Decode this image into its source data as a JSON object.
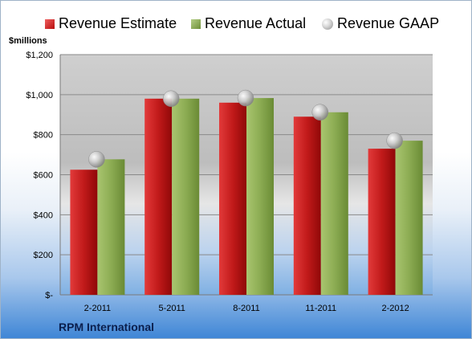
{
  "chart_data": {
    "type": "bar",
    "title": "",
    "xlabel": "",
    "ylabel": "",
    "unit_label": "$millions",
    "company": "RPM International",
    "categories": [
      "2-2011",
      "5-2011",
      "8-2011",
      "11-2011",
      "2-2012"
    ],
    "series": [
      {
        "name": "Revenue Estimate",
        "type": "bar",
        "values": [
          625,
          980,
          960,
          890,
          730
        ]
      },
      {
        "name": "Revenue Actual",
        "type": "bar",
        "values": [
          677,
          980,
          983,
          912,
          770
        ]
      },
      {
        "name": "Revenue GAAP",
        "type": "marker",
        "values": [
          677,
          980,
          983,
          912,
          770
        ]
      }
    ],
    "ylim": [
      0,
      1200
    ],
    "yticks": [
      0,
      200,
      400,
      600,
      800,
      1000,
      1200
    ],
    "ytick_labels": [
      "$-",
      "$200",
      "$400",
      "$600",
      "$800",
      "$1,000",
      "$1,200"
    ],
    "grid": true,
    "legend_position": "top",
    "colors": {
      "estimate": "#c11a1a",
      "actual": "#8cac53",
      "gaap": "#b8b8b8",
      "plot_bg": "#c9c9c9",
      "gridline": "#8a8a8a"
    }
  }
}
